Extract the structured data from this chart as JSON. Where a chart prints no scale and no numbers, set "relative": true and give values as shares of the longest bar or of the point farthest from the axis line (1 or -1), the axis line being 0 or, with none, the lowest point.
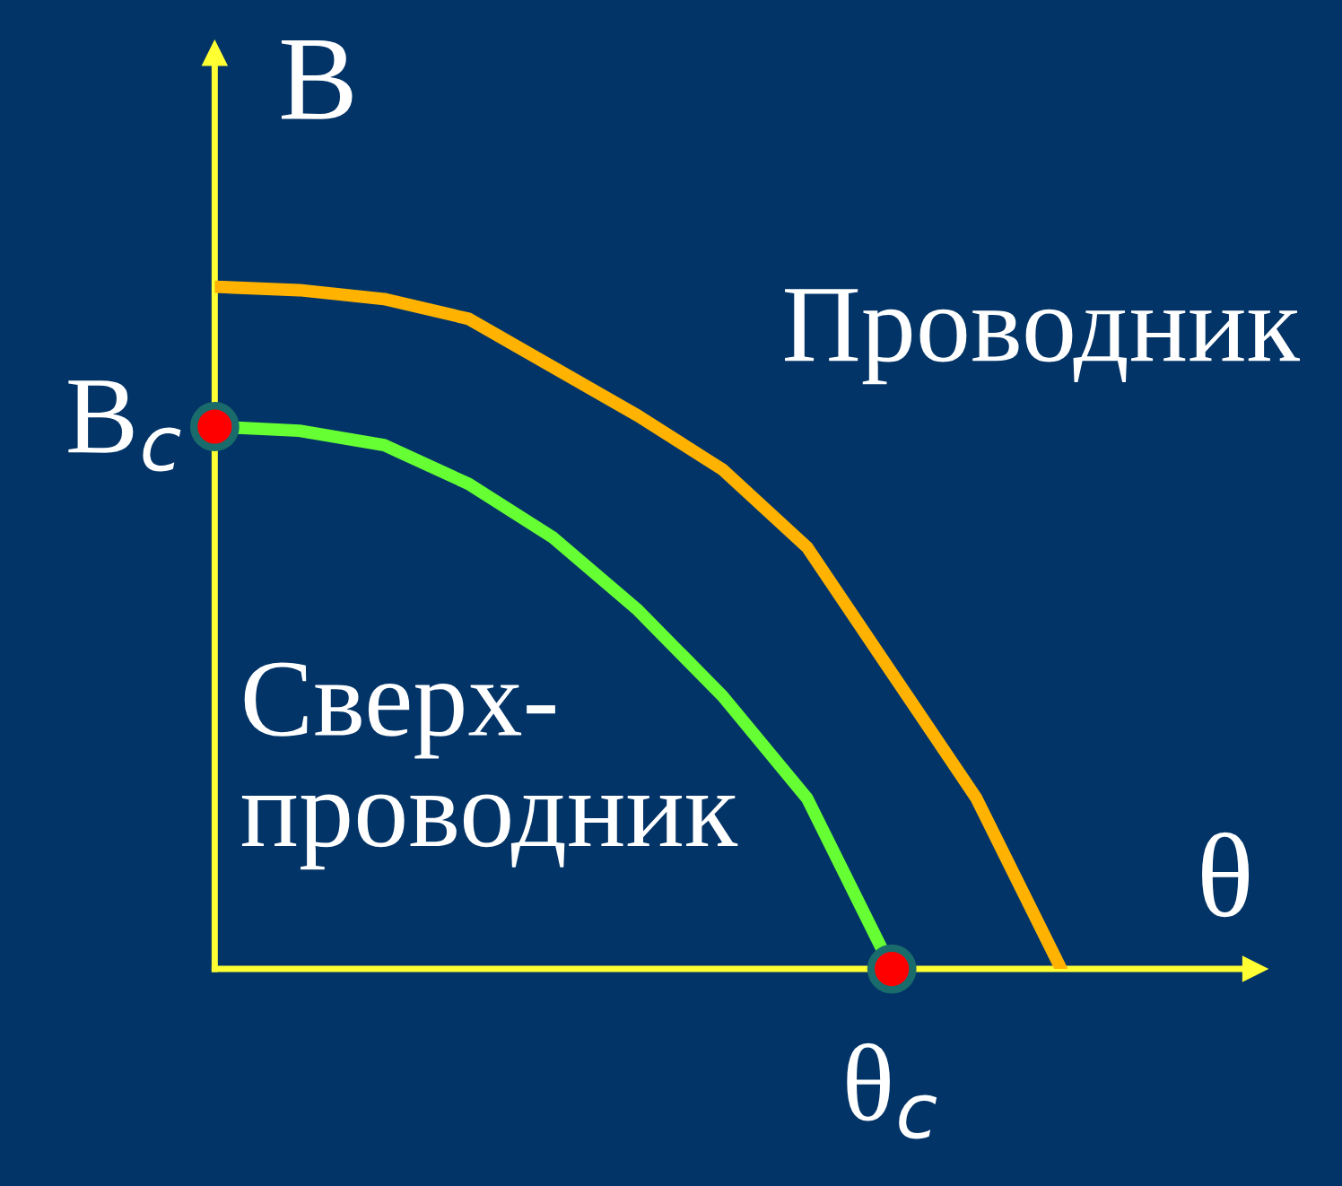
{
  "chart_data": {
    "type": "line",
    "relative": true,
    "xlabel": "θ",
    "ylabel": "B",
    "categories": [
      null,
      null,
      null,
      null,
      null,
      null,
      null,
      null,
      null,
      null,
      null
    ],
    "series": [
      {
        "color": "#ffb300",
        "values": [
          1,
          0.995,
          0.982,
          0.953,
          0.882,
          0.811,
          0.732,
          0.618,
          0.434,
          0.25,
          0
        ]
      },
      {
        "color": "#66ff33",
        "values": [
          0.795,
          0.789,
          0.768,
          0.711,
          0.632,
          0.526,
          0.4,
          0.25,
          0,
          null,
          null
        ]
      }
    ],
    "annotations": [
      "B$_{c}$",
      "θ$_{c}$",
      "Проводник",
      "Сверх-\nпроводник"
    ]
  }
}
